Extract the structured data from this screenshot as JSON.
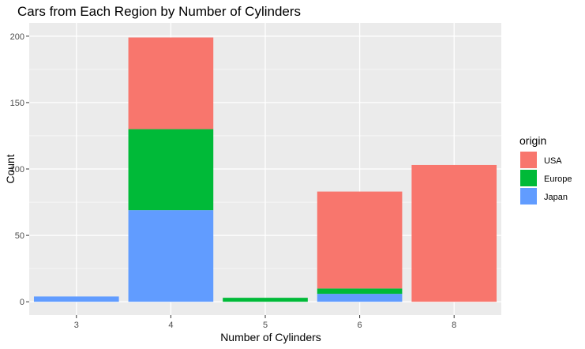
{
  "chart_data": {
    "type": "bar",
    "stacked": true,
    "title": "Cars from Each Region by Number of Cylinders",
    "xlabel": "Number of Cylinders",
    "ylabel": "Count",
    "categories": [
      "3",
      "4",
      "5",
      "6",
      "8"
    ],
    "series": [
      {
        "name": "Japan",
        "color": "#619CFF",
        "values": [
          4,
          69,
          0,
          6,
          0
        ]
      },
      {
        "name": "Europe",
        "color": "#00BA38",
        "values": [
          0,
          61,
          3,
          4,
          0
        ]
      },
      {
        "name": "USA",
        "color": "#F8766D",
        "values": [
          0,
          69,
          0,
          73,
          103
        ]
      }
    ],
    "yticks": [
      0,
      50,
      100,
      150,
      200
    ],
    "ylim": [
      -10,
      210
    ],
    "grid": true,
    "legend": {
      "title": "origin",
      "position": "right",
      "order": [
        "USA",
        "Europe",
        "Japan"
      ]
    }
  }
}
